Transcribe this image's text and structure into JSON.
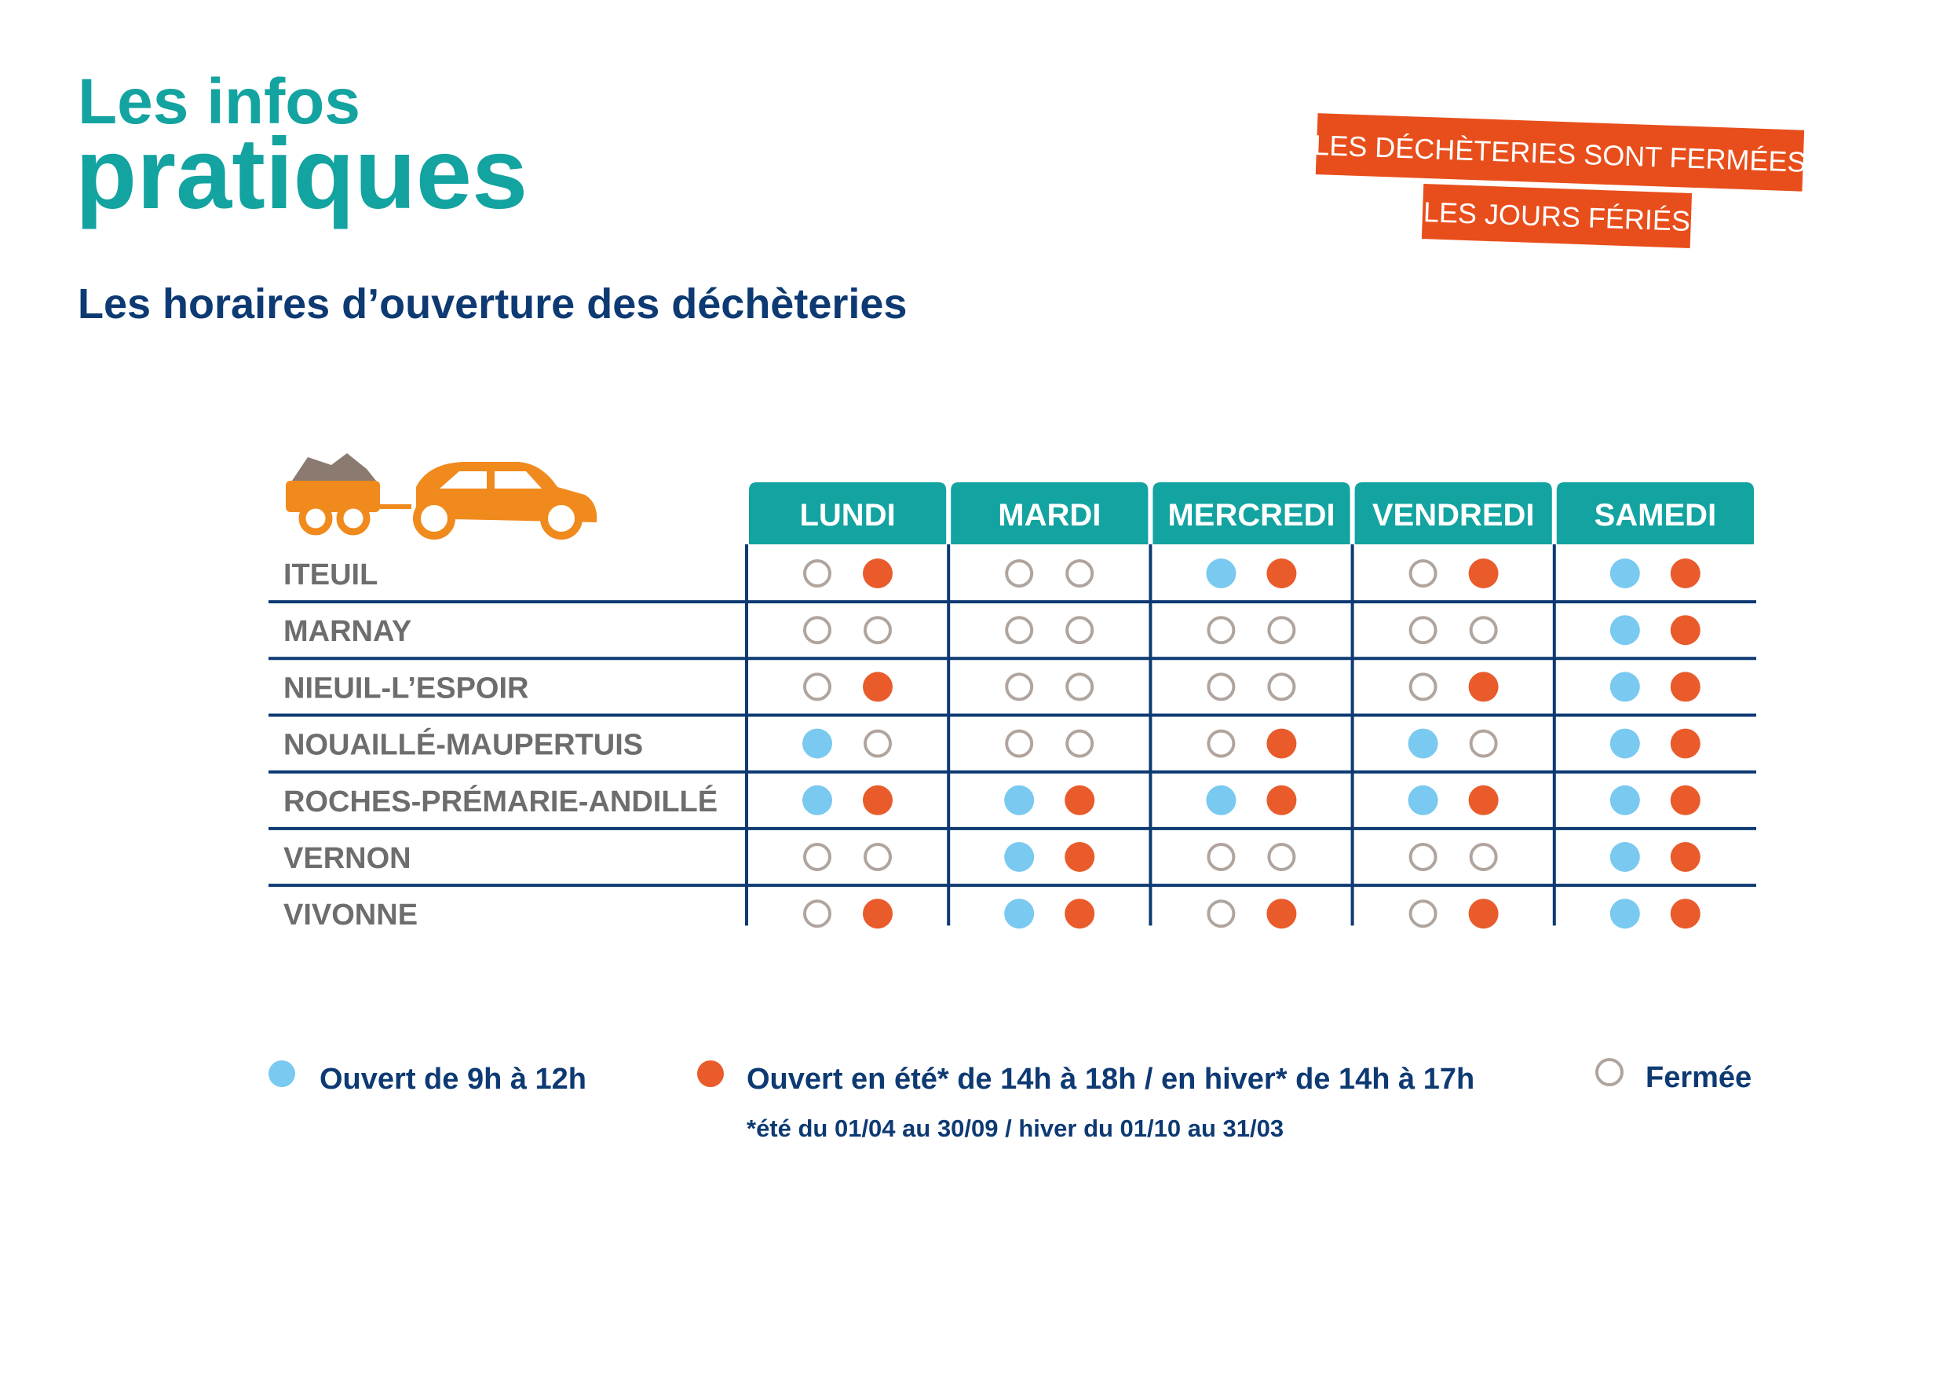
{
  "header": {
    "title_line1": "Les infos",
    "title_line2": "pratiques",
    "badge_line1": "LES DÉCHÈTERIES SONT FERMÉES",
    "badge_line2": "LES JOURS FÉRIÉS",
    "subtitle": "Les horaires d’ouverture des déchèteries"
  },
  "table": {
    "days": [
      "LUNDI",
      "MARDI",
      "MERCREDI",
      "VENDREDI",
      "SAMEDI"
    ],
    "rows": [
      {
        "name": "ITEUIL",
        "days": [
          [
            false,
            true
          ],
          [
            false,
            false
          ],
          [
            true,
            true
          ],
          [
            false,
            true
          ],
          [
            true,
            true
          ]
        ]
      },
      {
        "name": "MARNAY",
        "days": [
          [
            false,
            false
          ],
          [
            false,
            false
          ],
          [
            false,
            false
          ],
          [
            false,
            false
          ],
          [
            true,
            true
          ]
        ]
      },
      {
        "name": "NIEUIL-L’ESPOIR",
        "days": [
          [
            false,
            true
          ],
          [
            false,
            false
          ],
          [
            false,
            false
          ],
          [
            false,
            true
          ],
          [
            true,
            true
          ]
        ]
      },
      {
        "name": "NOUAILLÉ-MAUPERTUIS",
        "days": [
          [
            true,
            false
          ],
          [
            false,
            false
          ],
          [
            false,
            true
          ],
          [
            true,
            false
          ],
          [
            true,
            true
          ]
        ]
      },
      {
        "name": "ROCHES-PRÉMARIE-ANDILLÉ",
        "days": [
          [
            true,
            true
          ],
          [
            true,
            true
          ],
          [
            true,
            true
          ],
          [
            true,
            true
          ],
          [
            true,
            true
          ]
        ]
      },
      {
        "name": "VERNON",
        "days": [
          [
            false,
            false
          ],
          [
            true,
            true
          ],
          [
            false,
            false
          ],
          [
            false,
            false
          ],
          [
            true,
            true
          ]
        ]
      },
      {
        "name": "VIVONNE",
        "days": [
          [
            false,
            true
          ],
          [
            true,
            true
          ],
          [
            false,
            true
          ],
          [
            false,
            true
          ],
          [
            true,
            true
          ]
        ]
      }
    ]
  },
  "legend": {
    "morning": "Ouvert de 9h à 12h",
    "afternoon": "Ouvert en été* de 14h à 18h / en hiver* de 14h à 17h",
    "closed": "Fermée",
    "note": "*été du 01/04 au 30/09 / hiver du 01/10 au 31/03"
  }
}
